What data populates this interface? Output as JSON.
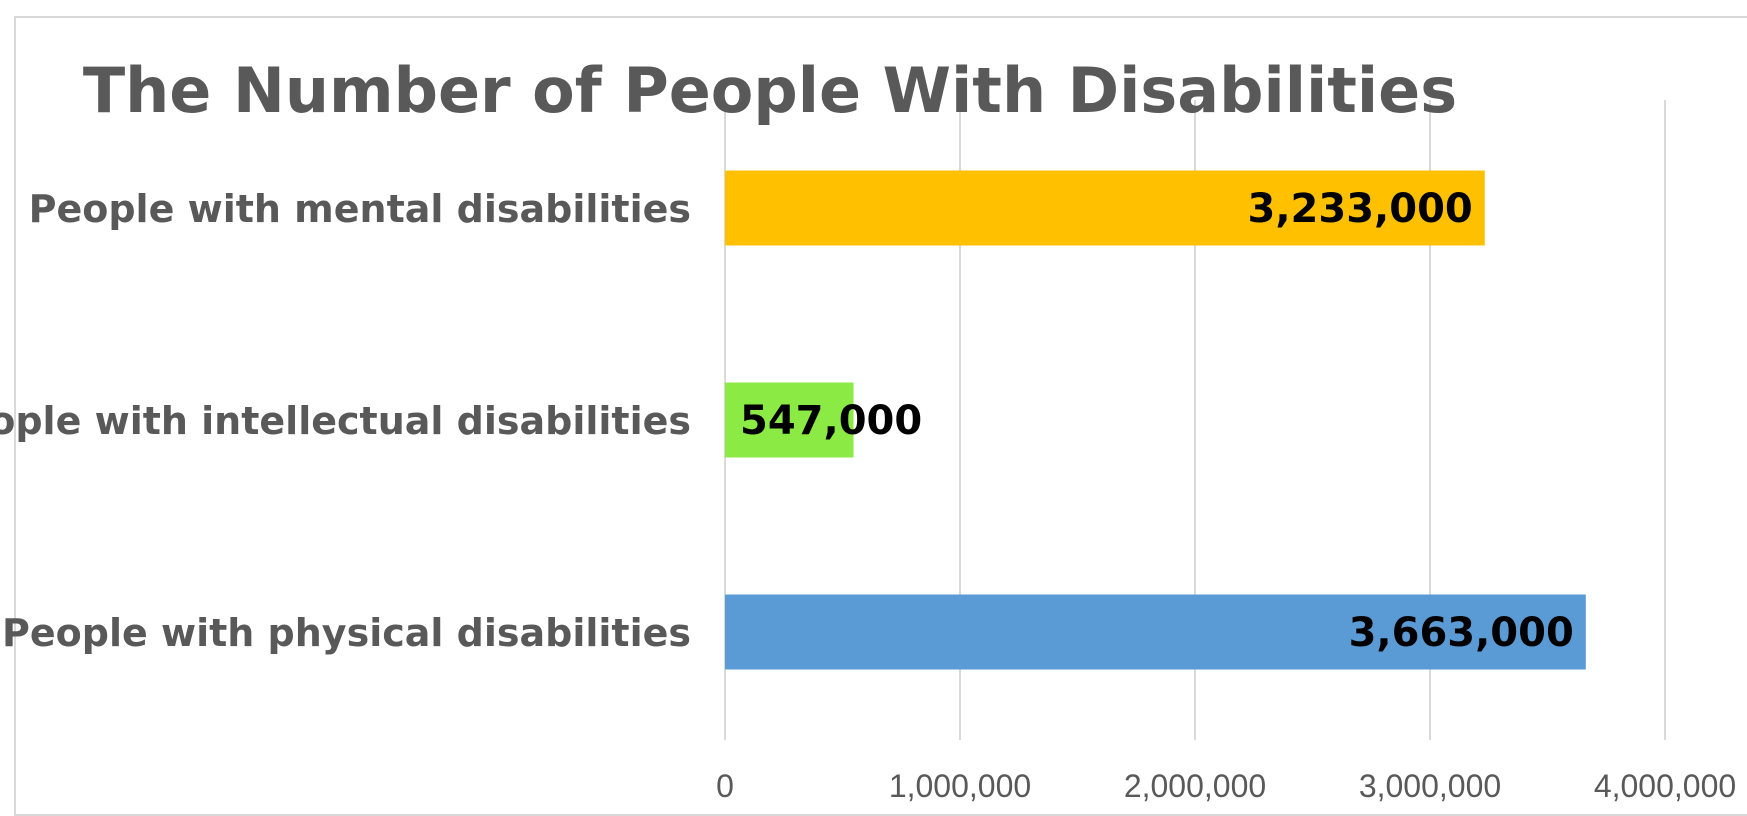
{
  "chart_data": {
    "type": "bar",
    "orientation": "horizontal",
    "title": "The Number of People With Disabilities",
    "categories": [
      "People with mental disabilities",
      "People with intellectual disabilities",
      "People with physical disabilities"
    ],
    "values": [
      3233000,
      547000,
      3663000
    ],
    "value_labels": [
      "3,233,000",
      "547,000",
      "3,663,000"
    ],
    "colors": [
      "#FFC000",
      "#8BEA43",
      "#5B9BD5"
    ],
    "xlim": [
      0,
      4000000
    ],
    "x_ticks": [
      0,
      1000000,
      2000000,
      3000000,
      4000000
    ],
    "x_tick_labels": [
      "0",
      "1,000,000",
      "2,000,000",
      "3,000,000",
      "4,000,000"
    ],
    "grid": true,
    "legend": "none"
  }
}
